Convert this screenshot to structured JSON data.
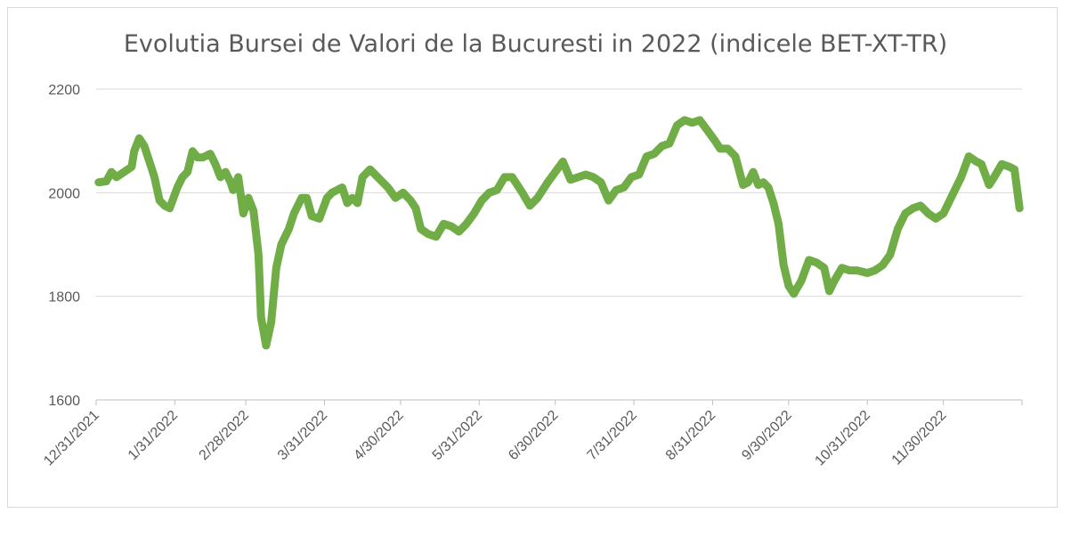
{
  "chart_data": {
    "type": "line",
    "title": "Evolutia Bursei de Valori de la Bucuresti in 2022 (indicele BET-XT-TR)",
    "xlabel": "",
    "ylabel": "",
    "ylim": [
      1600,
      2200
    ],
    "yticks": [
      1600,
      1800,
      2000,
      2200
    ],
    "xlim": [
      "2021-12-31",
      "2022-12-31"
    ],
    "xtick_labels": [
      "12/31/2021",
      "1/31/2022",
      "2/28/2022",
      "3/31/2022",
      "4/30/2022",
      "5/31/2022",
      "6/30/2022",
      "7/31/2022",
      "8/31/2022",
      "9/30/2022",
      "10/31/2022",
      "11/30/2022"
    ],
    "xtick_dates": [
      "2021-12-31",
      "2022-01-31",
      "2022-02-28",
      "2022-03-31",
      "2022-04-30",
      "2022-05-31",
      "2022-06-30",
      "2022-07-31",
      "2022-08-31",
      "2022-09-30",
      "2022-10-31",
      "2022-11-30"
    ],
    "grid": true,
    "line_color": "#70ad47",
    "series": [
      {
        "x": [
          "2022-01-01",
          "2022-01-04",
          "2022-01-06",
          "2022-01-08",
          "2022-01-11",
          "2022-01-14",
          "2022-01-15",
          "2022-01-17",
          "2022-01-19",
          "2022-01-21",
          "2022-01-23",
          "2022-01-25",
          "2022-01-27",
          "2022-01-29",
          "2022-02-01",
          "2022-02-03",
          "2022-02-05",
          "2022-02-07",
          "2022-02-09",
          "2022-02-11",
          "2022-02-14",
          "2022-02-16",
          "2022-02-18",
          "2022-02-20",
          "2022-02-22",
          "2022-02-23",
          "2022-02-25",
          "2022-02-27",
          "2022-03-01",
          "2022-03-03",
          "2022-03-05",
          "2022-03-06",
          "2022-03-08",
          "2022-03-10",
          "2022-03-12",
          "2022-03-14",
          "2022-03-17",
          "2022-03-19",
          "2022-03-22",
          "2022-03-24",
          "2022-03-26",
          "2022-03-29",
          "2022-04-01",
          "2022-04-03",
          "2022-04-05",
          "2022-04-07",
          "2022-04-09",
          "2022-04-11",
          "2022-04-13",
          "2022-04-15",
          "2022-04-18",
          "2022-04-21",
          "2022-04-25",
          "2022-04-28",
          "2022-05-01",
          "2022-05-04",
          "2022-05-06",
          "2022-05-08",
          "2022-05-11",
          "2022-05-14",
          "2022-05-17",
          "2022-05-20",
          "2022-05-23",
          "2022-05-26",
          "2022-05-29",
          "2022-06-01",
          "2022-06-04",
          "2022-06-07",
          "2022-06-10",
          "2022-06-13",
          "2022-06-17",
          "2022-06-20",
          "2022-06-23",
          "2022-06-27",
          "2022-06-30",
          "2022-07-03",
          "2022-07-06",
          "2022-07-09",
          "2022-07-12",
          "2022-07-15",
          "2022-07-18",
          "2022-07-21",
          "2022-07-24",
          "2022-07-27",
          "2022-07-30",
          "2022-08-02",
          "2022-08-05",
          "2022-08-08",
          "2022-08-11",
          "2022-08-14",
          "2022-08-17",
          "2022-08-20",
          "2022-08-23",
          "2022-08-26",
          "2022-08-29",
          "2022-09-01",
          "2022-09-03",
          "2022-09-06",
          "2022-09-09",
          "2022-09-12",
          "2022-09-14",
          "2022-09-16",
          "2022-09-18",
          "2022-09-20",
          "2022-09-22",
          "2022-09-24",
          "2022-09-26",
          "2022-09-28",
          "2022-09-30",
          "2022-10-02",
          "2022-10-05",
          "2022-10-08",
          "2022-10-11",
          "2022-10-14",
          "2022-10-16",
          "2022-10-18",
          "2022-10-21",
          "2022-10-24",
          "2022-10-27",
          "2022-10-31",
          "2022-11-03",
          "2022-11-06",
          "2022-11-09",
          "2022-11-12",
          "2022-11-15",
          "2022-11-18",
          "2022-11-21",
          "2022-11-24",
          "2022-11-27",
          "2022-11-30",
          "2022-12-03",
          "2022-12-05",
          "2022-12-07",
          "2022-12-10",
          "2022-12-13",
          "2022-12-15",
          "2022-12-18",
          "2022-12-20",
          "2022-12-23",
          "2022-12-26",
          "2022-12-28",
          "2022-12-30"
        ],
        "y": [
          2020,
          2022,
          2040,
          2030,
          2040,
          2050,
          2080,
          2105,
          2090,
          2060,
          2030,
          1985,
          1975,
          1970,
          2010,
          2030,
          2040,
          2080,
          2068,
          2068,
          2075,
          2055,
          2030,
          2040,
          2020,
          2005,
          2030,
          1960,
          1990,
          1965,
          1880,
          1760,
          1705,
          1750,
          1855,
          1900,
          1930,
          1960,
          1990,
          1990,
          1955,
          1950,
          1990,
          2000,
          2005,
          2010,
          1980,
          1990,
          1980,
          2030,
          2045,
          2030,
          2010,
          1990,
          2000,
          1985,
          1970,
          1930,
          1920,
          1915,
          1940,
          1935,
          1925,
          1940,
          1960,
          1985,
          2000,
          2005,
          2030,
          2030,
          2000,
          1975,
          1990,
          2020,
          2040,
          2060,
          2025,
          2030,
          2035,
          2030,
          2020,
          1985,
          2005,
          2010,
          2030,
          2035,
          2070,
          2075,
          2090,
          2095,
          2130,
          2140,
          2135,
          2140,
          2120,
          2100,
          2085,
          2085,
          2070,
          2015,
          2020,
          2040,
          2015,
          2020,
          2010,
          1980,
          1940,
          1860,
          1820,
          1805,
          1830,
          1870,
          1865,
          1855,
          1810,
          1830,
          1855,
          1850,
          1850,
          1845,
          1850,
          1860,
          1880,
          1930,
          1960,
          1970,
          1975,
          1960,
          1950,
          1960,
          1990,
          2010,
          2030,
          2070,
          2060,
          2055,
          2015,
          2030,
          2055,
          2050,
          2045,
          1970
        ]
      }
    ]
  }
}
